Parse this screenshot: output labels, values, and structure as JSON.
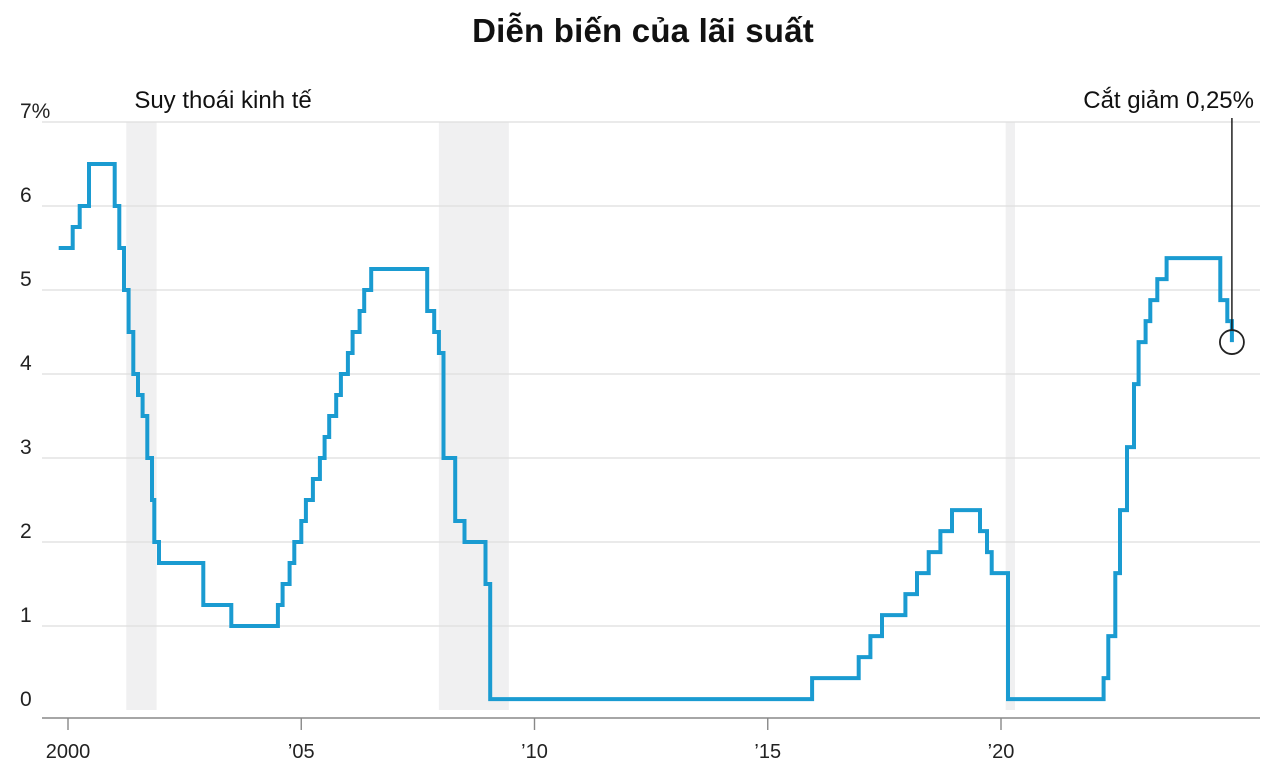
{
  "chart_data": {
    "type": "line",
    "title": "Diễn biến của lãi suất",
    "xlabel": "",
    "ylabel": "",
    "xlim": [
      1999.6,
      2025.3
    ],
    "ylim": [
      0,
      7
    ],
    "yticks": [
      {
        "value": 0,
        "label": "0"
      },
      {
        "value": 1,
        "label": "1"
      },
      {
        "value": 2,
        "label": "2"
      },
      {
        "value": 3,
        "label": "3"
      },
      {
        "value": 4,
        "label": "4"
      },
      {
        "value": 5,
        "label": "5"
      },
      {
        "value": 6,
        "label": "6"
      },
      {
        "value": 7,
        "label": "7%"
      }
    ],
    "xticks": [
      {
        "value": 2000,
        "label": "2000"
      },
      {
        "value": 2005,
        "label": "’05"
      },
      {
        "value": 2010,
        "label": "’10"
      },
      {
        "value": 2015,
        "label": "’15"
      },
      {
        "value": 2020,
        "label": "’20"
      }
    ],
    "grid": true,
    "recessions": [
      {
        "start": 2001.25,
        "end": 2001.9
      },
      {
        "start": 2007.95,
        "end": 2009.45
      },
      {
        "start": 2020.1,
        "end": 2020.3
      }
    ],
    "series": [
      {
        "color": "#1a9bd1",
        "x": [
          1999.8,
          2000.1,
          2000.25,
          2000.45,
          2001.0,
          2001.1,
          2001.2,
          2001.3,
          2001.4,
          2001.5,
          2001.6,
          2001.7,
          2001.8,
          2001.85,
          2001.95,
          2002.9,
          2003.5,
          2004.5,
          2004.6,
          2004.75,
          2004.85,
          2005.0,
          2005.1,
          2005.25,
          2005.4,
          2005.5,
          2005.6,
          2005.75,
          2005.85,
          2006.0,
          2006.1,
          2006.25,
          2006.35,
          2006.5,
          2007.7,
          2007.85,
          2007.95,
          2008.05,
          2008.1,
          2008.3,
          2008.5,
          2008.95,
          2009.05,
          2015.95,
          2016.95,
          2017.2,
          2017.45,
          2017.95,
          2018.2,
          2018.45,
          2018.7,
          2018.95,
          2019.55,
          2019.7,
          2019.8,
          2020.15,
          2020.2,
          2022.2,
          2022.3,
          2022.45,
          2022.55,
          2022.7,
          2022.85,
          2022.95,
          2023.1,
          2023.2,
          2023.35,
          2023.55,
          2024.7,
          2024.85,
          2024.95
        ],
        "y": [
          5.5,
          5.75,
          6.0,
          6.5,
          6.0,
          5.5,
          5.0,
          4.5,
          4.0,
          3.75,
          3.5,
          3.0,
          2.5,
          2.0,
          1.75,
          1.25,
          1.0,
          1.25,
          1.5,
          1.75,
          2.0,
          2.25,
          2.5,
          2.75,
          3.0,
          3.25,
          3.5,
          3.75,
          4.0,
          4.25,
          4.5,
          4.75,
          5.0,
          5.25,
          4.75,
          4.5,
          4.25,
          3.0,
          3.0,
          2.25,
          2.0,
          1.5,
          0.13,
          0.38,
          0.63,
          0.88,
          1.13,
          1.38,
          1.63,
          1.88,
          2.13,
          2.38,
          2.13,
          1.88,
          1.63,
          0.13,
          0.13,
          0.38,
          0.88,
          1.63,
          2.38,
          3.13,
          3.88,
          4.38,
          4.63,
          4.88,
          5.13,
          5.38,
          4.88,
          4.63,
          4.38
        ]
      }
    ],
    "annotations": [
      {
        "text": "Suy thoái kinh tế",
        "x": 2001.25,
        "y": 7.1
      },
      {
        "text": "Cắt giảm 0,25%",
        "x": 2024.95,
        "y": 4.38
      }
    ]
  }
}
